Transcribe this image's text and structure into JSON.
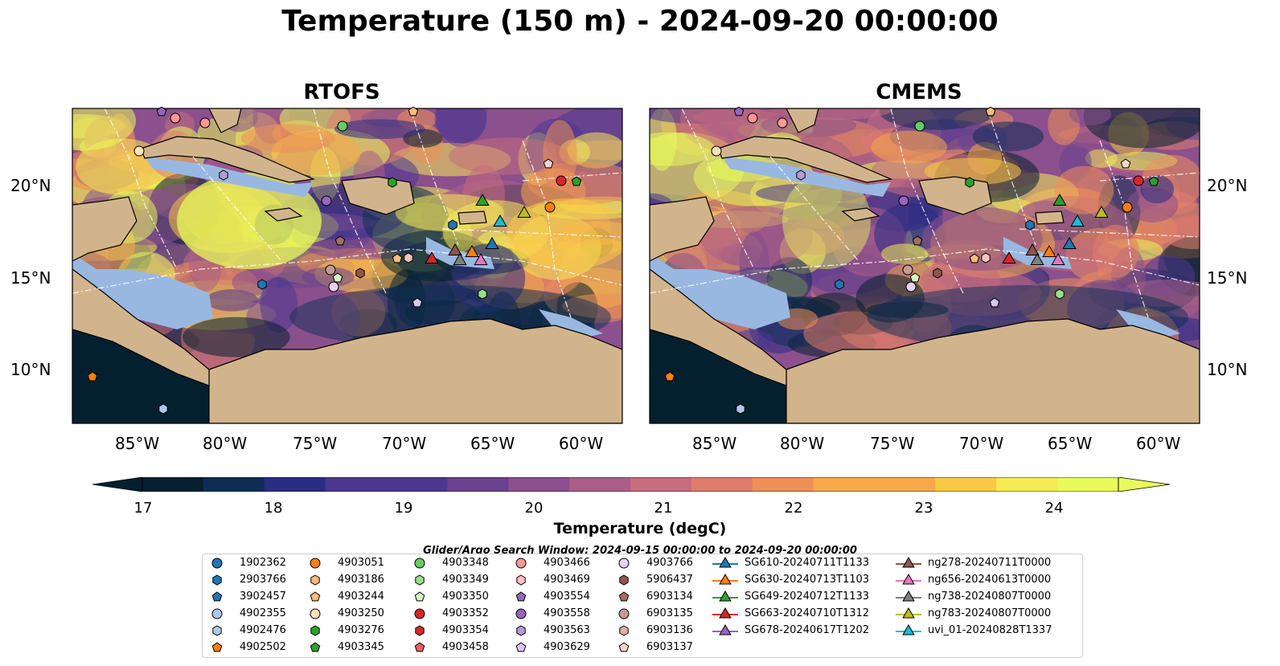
{
  "title": "Temperature (150 m) - 2024-09-20 00:00:00",
  "panels": [
    {
      "title": "RTOFS"
    },
    {
      "title": "CMEMS"
    }
  ],
  "lon_ticks": [
    "85°W",
    "80°W",
    "75°W",
    "70°W",
    "65°W",
    "60°W"
  ],
  "lat_ticks": [
    "20°N",
    "15°N",
    "10°N"
  ],
  "colorbar": {
    "label": "Temperature (degC)",
    "ticks": [
      "17",
      "18",
      "19",
      "20",
      "21",
      "22",
      "23",
      "24"
    ],
    "vmin": 16.5,
    "vmax": 24.5
  },
  "search_window": "Glider/Argo Search Window: 2024-09-15 00:00:00 to 2024-09-20 00:00:00",
  "legend": {
    "argo": [
      {
        "label": "1902362",
        "marker": "circle",
        "color": "#1f77b4"
      },
      {
        "label": "2903766",
        "marker": "hexagon",
        "color": "#1f77b4"
      },
      {
        "label": "3902457",
        "marker": "pentagon",
        "color": "#1f77b4"
      },
      {
        "label": "4902355",
        "marker": "circle",
        "color": "#aec7e8"
      },
      {
        "label": "4902476",
        "marker": "hexagon",
        "color": "#aec7e8"
      },
      {
        "label": "4902502",
        "marker": "pentagon",
        "color": "#ff7f0e"
      },
      {
        "label": "4903051",
        "marker": "circle",
        "color": "#ff7f0e"
      },
      {
        "label": "4903186",
        "marker": "hexagon",
        "color": "#ffbb78"
      },
      {
        "label": "4903244",
        "marker": "pentagon",
        "color": "#ffbb78"
      },
      {
        "label": "4903250",
        "marker": "circle",
        "color": "#ffe0b8"
      },
      {
        "label": "4903276",
        "marker": "hexagon",
        "color": "#2ca02c"
      },
      {
        "label": "4903345",
        "marker": "pentagon",
        "color": "#2ca02c"
      },
      {
        "label": "4903348",
        "marker": "circle",
        "color": "#66cc66"
      },
      {
        "label": "4903349",
        "marker": "hexagon",
        "color": "#98df8a"
      },
      {
        "label": "4903350",
        "marker": "pentagon",
        "color": "#d5f5c8"
      },
      {
        "label": "4903352",
        "marker": "circle",
        "color": "#d62728"
      },
      {
        "label": "4903354",
        "marker": "hexagon",
        "color": "#d62728"
      },
      {
        "label": "4903458",
        "marker": "pentagon",
        "color": "#e85f5f"
      },
      {
        "label": "4903466",
        "marker": "circle",
        "color": "#ff9896"
      },
      {
        "label": "4903469",
        "marker": "hexagon",
        "color": "#ffc0bf"
      },
      {
        "label": "4903554",
        "marker": "pentagon",
        "color": "#9467bd"
      },
      {
        "label": "4903558",
        "marker": "circle",
        "color": "#9467bd"
      },
      {
        "label": "4903563",
        "marker": "hexagon",
        "color": "#b39bd8"
      },
      {
        "label": "4903629",
        "marker": "pentagon",
        "color": "#d8c8ef"
      },
      {
        "label": "4903766",
        "marker": "circle",
        "color": "#e8d0f5"
      },
      {
        "label": "5906437",
        "marker": "hexagon",
        "color": "#8c564b"
      },
      {
        "label": "6903134",
        "marker": "pentagon",
        "color": "#a0705f"
      },
      {
        "label": "6903135",
        "marker": "circle",
        "color": "#c49c94"
      },
      {
        "label": "6903136",
        "marker": "hexagon",
        "color": "#ddb0a8"
      },
      {
        "label": "6903137",
        "marker": "pentagon",
        "color": "#f2d5d0"
      }
    ],
    "gliders": [
      {
        "label": "SG610-20240711T1133",
        "color": "#1f77b4"
      },
      {
        "label": "SG630-20240713T1103",
        "color": "#ff7f0e"
      },
      {
        "label": "SG649-20240712T1133",
        "color": "#2ca02c"
      },
      {
        "label": "SG663-20240710T1312",
        "color": "#d62728"
      },
      {
        "label": "SG678-20240617T1202",
        "color": "#9467bd"
      },
      {
        "label": "ng278-20240711T0000",
        "color": "#8c564b"
      },
      {
        "label": "ng656-20240613T0000",
        "color": "#e377c2"
      },
      {
        "label": "ng738-20240807T0000",
        "color": "#7f7f7f"
      },
      {
        "label": "ng783-20240807T0000",
        "color": "#bcbd22"
      },
      {
        "label": "uvi_01-20240828T1337",
        "color": "#17becf"
      }
    ]
  },
  "colors": {
    "land": "#d2b48c",
    "shelf": "#98b8e2",
    "cmap": [
      "#04202e",
      "#0e2d55",
      "#2a2c85",
      "#4a3790",
      "#6a428f",
      "#8b508d",
      "#ab5e87",
      "#c76c7d",
      "#e07c6c",
      "#ef8f58",
      "#f8a84a",
      "#fbc846",
      "#f5ea55",
      "#e8fa5b"
    ]
  }
}
